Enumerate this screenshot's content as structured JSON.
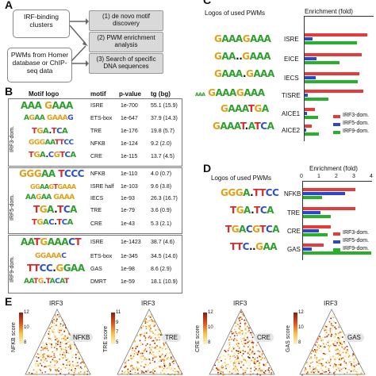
{
  "panel_a": {
    "letter": "A",
    "irf_box": "IRF-binding clusters",
    "pwm_box": "PWMs from Homer database or ChIP-seq data",
    "step1": "(1) de novo motif discovery",
    "step2": "(2) PWM enrichment analysis",
    "step3": "(3) Search of specific DNA sequences"
  },
  "panel_b": {
    "letter": "B",
    "headers": {
      "logo": "Motif logo",
      "motif": "motif",
      "pvalue": "p-value",
      "tg": "tg (bg)"
    },
    "groups": [
      {
        "label": "IRF3-dom.",
        "rows": [
          {
            "motif": "ISRE",
            "p": "1e-700",
            "tg": "55.1 (15.9)"
          },
          {
            "motif": "ETS-box",
            "p": "1e-647",
            "tg": "37.9 (14.3)"
          },
          {
            "motif": "TRE",
            "p": "1e-176",
            "tg": "19.8 (5.7)"
          },
          {
            "motif": "NFKB",
            "p": "1e-124",
            "tg": "9.2 (2.0)"
          },
          {
            "motif": "CRE",
            "p": "1e-115",
            "tg": "13.7 (4.5)"
          }
        ]
      },
      {
        "label": "IRF5-dom.",
        "rows": [
          {
            "motif": "NFKB",
            "p": "1e-110",
            "tg": "4.0 (0.7)"
          },
          {
            "motif": "ISRE half",
            "p": "1e-103",
            "tg": "9.6 (3.8)"
          },
          {
            "motif": "IECS",
            "p": "1e-93",
            "tg": "26.3 (16.7)"
          },
          {
            "motif": "TRE",
            "p": "1e-79",
            "tg": "3.6 (0.9)"
          },
          {
            "motif": "CRE",
            "p": "1e-43",
            "tg": "5.3 (2.1)"
          }
        ]
      },
      {
        "label": "IRF9-dom.",
        "rows": [
          {
            "motif": "ISRE",
            "p": "1e-1423",
            "tg": "38.7 (4.6)"
          },
          {
            "motif": "ETS-box",
            "p": "1e-345",
            "tg": "34.5 (14.0)"
          },
          {
            "motif": "GAS",
            "p": "1e-98",
            "tg": "8.6 (2.9)"
          },
          {
            "motif": "DMRT",
            "p": "1e-59",
            "tg": "18.1 (10.9)"
          }
        ]
      }
    ]
  },
  "panel_c": {
    "letter": "C",
    "logos_title": "Logos of used PWMs",
    "enrich_title": "Enrichment (fold)",
    "legend": [
      "IRF3-dom.",
      "IRF5-dom.",
      "IRF9-dom."
    ],
    "colors": [
      "#e63b3b",
      "#2a48c7",
      "#27b02b"
    ]
  },
  "panel_d": {
    "letter": "D",
    "logos_title": "Logos of used PWMs",
    "enrich_title": "Enrichment (fold)",
    "ticks": [
      "0",
      "1",
      "2",
      "3",
      "4"
    ],
    "legend": [
      "IRF3-dom.",
      "IRF5-dom.",
      "IRF9-dom."
    ]
  },
  "panel_e": {
    "letter": "E",
    "triangles": [
      {
        "top": "IRF3",
        "right": "NFKB",
        "score": "NFKB score",
        "ticks": [
          "12",
          "10",
          "8"
        ]
      },
      {
        "top": "IRF3",
        "right": "TRE",
        "score": "TRE score",
        "ticks": [
          "11",
          "9",
          "7",
          "5"
        ]
      },
      {
        "top": "IRF3",
        "right": "CRE",
        "score": "CRE score",
        "ticks": [
          "12",
          "10",
          "8"
        ]
      },
      {
        "top": "IRF3",
        "right": "GAS",
        "score": "GAS score",
        "ticks": [
          "12",
          "10",
          "8"
        ]
      }
    ]
  },
  "chart_data": [
    {
      "type": "bar",
      "categories": [
        "ISRE",
        "EICE",
        "IECS",
        "TISRE",
        "AICE1",
        "AICE2"
      ],
      "series": [
        {
          "name": "IRF3-dom.",
          "values": [
            7.2,
            6.5,
            6.3,
            6.7,
            1.2,
            0.8
          ]
        },
        {
          "name": "IRF5-dom.",
          "values": [
            0.9,
            1.4,
            1.3,
            0.4,
            0.3,
            0.2
          ]
        },
        {
          "name": "IRF9-dom.",
          "values": [
            6.0,
            4.0,
            6.1,
            2.7,
            1.5,
            1.6
          ]
        }
      ],
      "xlim": [
        0,
        8
      ]
    },
    {
      "type": "bar",
      "categories": [
        "NFKB",
        "TRE",
        "CRE",
        "GAS"
      ],
      "series": [
        {
          "name": "IRF3-dom.",
          "values": [
            3.0,
            3.0,
            1.6,
            1.2
          ]
        },
        {
          "name": "IRF5-dom.",
          "values": [
            2.4,
            1.0,
            0.9,
            0.5
          ]
        },
        {
          "name": "IRF9-dom.",
          "values": [
            1.1,
            1.6,
            1.4,
            3.9
          ]
        }
      ],
      "xlim": [
        0,
        4
      ],
      "ticks": [
        0,
        1,
        2,
        3,
        4
      ]
    }
  ]
}
